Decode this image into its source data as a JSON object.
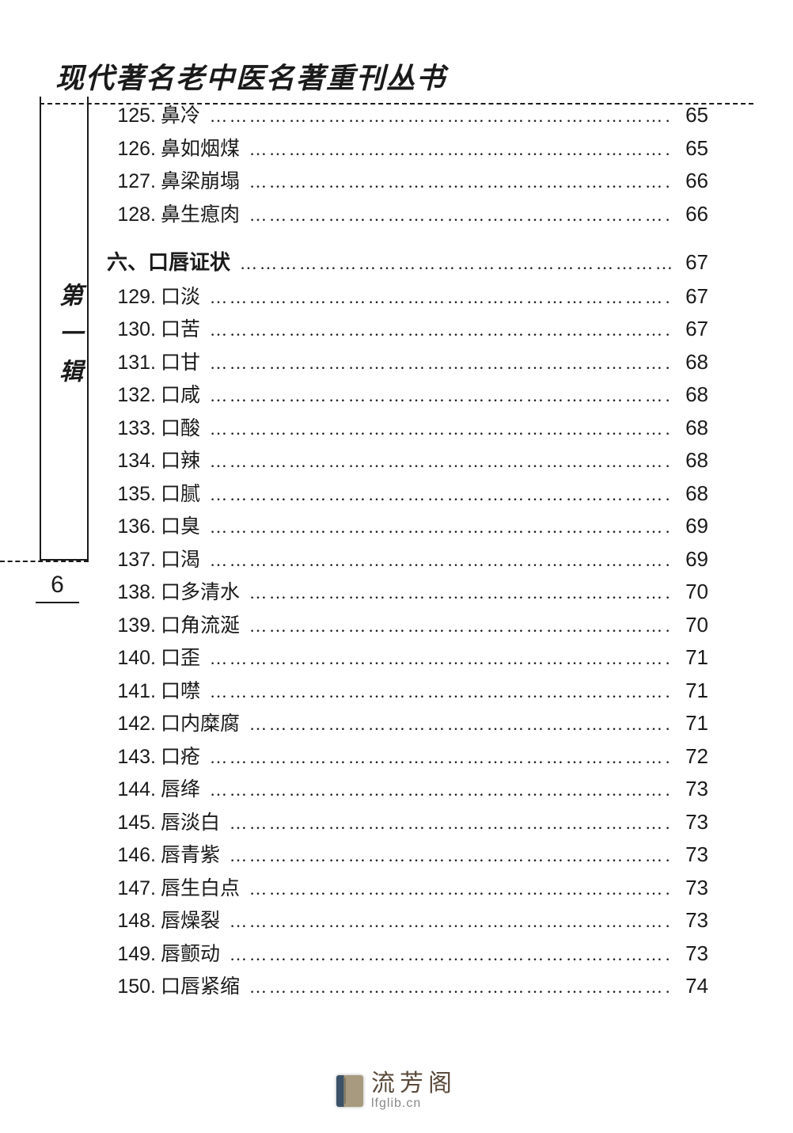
{
  "header_title": "现代著名老中医名著重刊丛书",
  "side_label": "第一辑",
  "page_number": "6",
  "dot_fill": "………………………………………………………………………………………………………………",
  "toc_groups": [
    {
      "type": "items",
      "items": [
        {
          "num": "125.",
          "title": "鼻冷",
          "page": "65"
        },
        {
          "num": "126.",
          "title": "鼻如烟煤",
          "page": "65"
        },
        {
          "num": "127.",
          "title": "鼻梁崩塌",
          "page": "66"
        },
        {
          "num": "128.",
          "title": "鼻生瘜肉",
          "page": "66"
        }
      ]
    },
    {
      "type": "section",
      "title": "六、口唇证状",
      "page": "67"
    },
    {
      "type": "items",
      "items": [
        {
          "num": "129.",
          "title": "口淡",
          "page": "67"
        },
        {
          "num": "130.",
          "title": "口苦",
          "page": "67"
        },
        {
          "num": "131.",
          "title": "口甘",
          "page": "68"
        },
        {
          "num": "132.",
          "title": "口咸",
          "page": "68"
        },
        {
          "num": "133.",
          "title": "口酸",
          "page": "68"
        },
        {
          "num": "134.",
          "title": "口辣",
          "page": "68"
        },
        {
          "num": "135.",
          "title": "口腻",
          "page": "68"
        },
        {
          "num": "136.",
          "title": "口臭",
          "page": "69"
        },
        {
          "num": "137.",
          "title": "口渴",
          "page": "69"
        },
        {
          "num": "138.",
          "title": "口多清水",
          "page": "70"
        },
        {
          "num": "139.",
          "title": "口角流涎",
          "page": "70"
        },
        {
          "num": "140.",
          "title": "口歪",
          "page": "71"
        },
        {
          "num": "141.",
          "title": "口噤",
          "page": "71"
        },
        {
          "num": "142.",
          "title": "口内糜腐",
          "page": "71"
        },
        {
          "num": "143.",
          "title": "口疮",
          "page": "72"
        },
        {
          "num": "144.",
          "title": "唇绛",
          "page": "73"
        },
        {
          "num": "145.",
          "title": "唇淡白",
          "page": "73"
        },
        {
          "num": "146.",
          "title": "唇青紫",
          "page": "73"
        },
        {
          "num": "147.",
          "title": "唇生白点",
          "page": "73"
        },
        {
          "num": "148.",
          "title": "唇燥裂",
          "page": "73"
        },
        {
          "num": "149.",
          "title": "唇颤动",
          "page": "73"
        },
        {
          "num": "150.",
          "title": "口唇紧缩",
          "page": "74"
        }
      ]
    }
  ],
  "footer": {
    "cn": "流芳阁",
    "url": "lfglib.cn"
  },
  "colors": {
    "text": "#1a1a1a",
    "background": "#ffffff",
    "footer_cn": "#5a4a3a",
    "footer_url": "#888888"
  },
  "typography": {
    "header_fontsize_pt": 27,
    "toc_fontsize_pt": 19,
    "section_fontsize_pt": 20,
    "page_num_fontsize_pt": 23,
    "side_label_fontsize_pt": 23
  }
}
